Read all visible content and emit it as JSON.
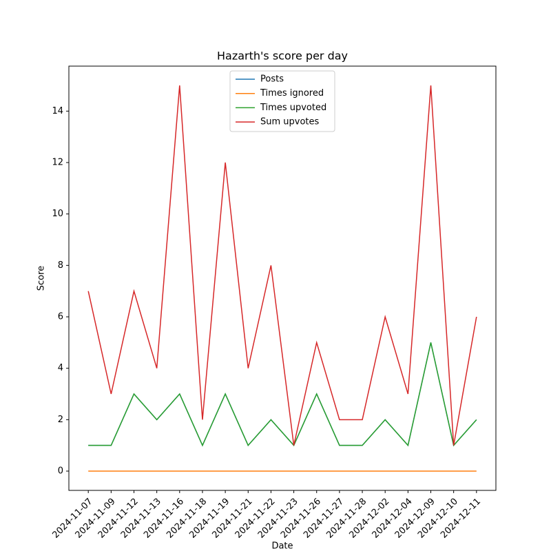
{
  "chart_data": {
    "type": "line",
    "title": "Hazarth's score per day",
    "xlabel": "Date",
    "ylabel": "Score",
    "categories": [
      "2024-11-07",
      "2024-11-09",
      "2024-11-12",
      "2024-11-13",
      "2024-11-16",
      "2024-11-18",
      "2024-11-19",
      "2024-11-21",
      "2024-11-22",
      "2024-11-23",
      "2024-11-26",
      "2024-11-27",
      "2024-11-28",
      "2024-12-02",
      "2024-12-04",
      "2024-12-09",
      "2024-12-10",
      "2024-12-11"
    ],
    "series": [
      {
        "name": "Posts",
        "color": "#1f77b4",
        "values": [
          1,
          1,
          3,
          2,
          3,
          1,
          3,
          1,
          2,
          1,
          3,
          1,
          1,
          2,
          1,
          5,
          1,
          2
        ]
      },
      {
        "name": "Times ignored",
        "color": "#ff7f0e",
        "values": [
          0,
          0,
          0,
          0,
          0,
          0,
          0,
          0,
          0,
          0,
          0,
          0,
          0,
          0,
          0,
          0,
          0,
          0
        ]
      },
      {
        "name": "Times upvoted",
        "color": "#2ca02c",
        "values": [
          1,
          1,
          3,
          2,
          3,
          1,
          3,
          1,
          2,
          1,
          3,
          1,
          1,
          2,
          1,
          5,
          1,
          2
        ]
      },
      {
        "name": "Sum upvotes",
        "color": "#d62728",
        "values": [
          7,
          3,
          7,
          4,
          15,
          2,
          12,
          4,
          8,
          1,
          5,
          2,
          2,
          6,
          3,
          15,
          1,
          6
        ]
      }
    ],
    "ylim": [
      -0.75,
      15.75
    ],
    "yticks": [
      0,
      2,
      4,
      6,
      8,
      10,
      12,
      14
    ],
    "legend": "upper center"
  }
}
